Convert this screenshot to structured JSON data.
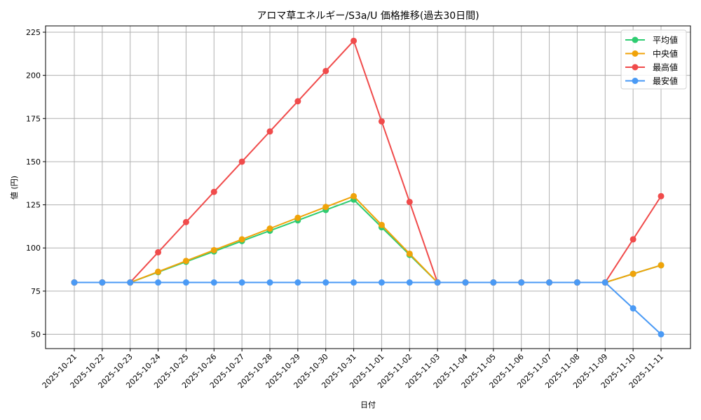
{
  "chart_data": {
    "type": "line",
    "title": "アロマ草エネルギー/S3a/U 価格推移(過去30日間)",
    "xlabel": "日付",
    "ylabel": "値 (円)",
    "ylim": [
      41.7,
      228.65
    ],
    "yticks": [
      50,
      75,
      100,
      125,
      150,
      175,
      200,
      225
    ],
    "grid": true,
    "legend_position": "upper right",
    "categories": [
      "2025-10-21",
      "2025-10-22",
      "2025-10-23",
      "2025-10-24",
      "2025-10-25",
      "2025-10-26",
      "2025-10-27",
      "2025-10-28",
      "2025-10-29",
      "2025-10-30",
      "2025-10-31",
      "2025-11-01",
      "2025-11-02",
      "2025-11-03",
      "2025-11-04",
      "2025-11-05",
      "2025-11-06",
      "2025-11-07",
      "2025-11-08",
      "2025-11-09",
      "2025-11-10",
      "2025-11-11"
    ],
    "series": [
      {
        "name": "平均値",
        "color": "#2ecc71",
        "values": [
          80,
          80,
          80,
          86,
          92,
          98,
          104,
          110,
          116,
          122,
          128,
          112,
          96,
          80,
          80,
          80,
          80,
          80,
          80,
          80,
          85,
          90
        ]
      },
      {
        "name": "中央値",
        "color": "#f0a30a",
        "values": [
          80,
          80,
          80,
          86.25,
          92.5,
          98.75,
          105,
          111.25,
          117.5,
          123.75,
          130,
          113.33,
          96.67,
          80,
          80,
          80,
          80,
          80,
          80,
          80,
          85,
          90
        ]
      },
      {
        "name": "最高値",
        "color": "#f04b4b",
        "values": [
          80,
          80,
          80,
          97.5,
          115,
          132.5,
          150,
          167.5,
          185,
          202.5,
          220,
          173.33,
          126.67,
          80,
          80,
          80,
          80,
          80,
          80,
          80,
          105,
          130
        ]
      },
      {
        "name": "最安値",
        "color": "#4a9af5",
        "values": [
          80,
          80,
          80,
          80,
          80,
          80,
          80,
          80,
          80,
          80,
          80,
          80,
          80,
          80,
          80,
          80,
          80,
          80,
          80,
          80,
          65,
          50
        ]
      }
    ]
  }
}
